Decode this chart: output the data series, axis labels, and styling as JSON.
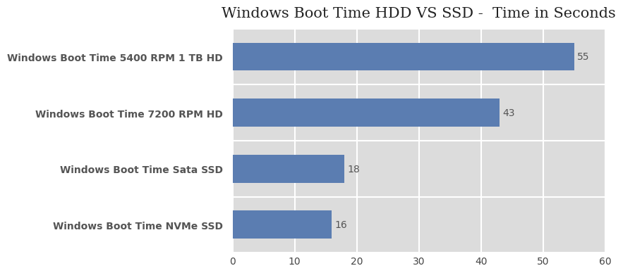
{
  "title": "Windows Boot Time HDD VS SSD -  Time in Seconds",
  "categories": [
    "Windows Boot Time 5400 RPM 1 TB HD",
    "Windows Boot Time 7200 RPM HD",
    "Windows Boot Time Sata SSD",
    "Windows Boot Time NVMe SSD"
  ],
  "values": [
    55,
    43,
    18,
    16
  ],
  "bar_color": "#5b7db1",
  "label_color": "#555555",
  "value_color": "#555555",
  "title_color": "#222222",
  "figure_bg_color": "#ffffff",
  "plot_bg_color": "#dcdcdc",
  "grid_color": "#ffffff",
  "xlim": [
    0,
    60
  ],
  "xticks": [
    0,
    10,
    20,
    30,
    40,
    50,
    60
  ],
  "bar_height": 0.5,
  "title_fontsize": 15,
  "label_fontsize": 10,
  "value_fontsize": 10,
  "tick_fontsize": 10
}
